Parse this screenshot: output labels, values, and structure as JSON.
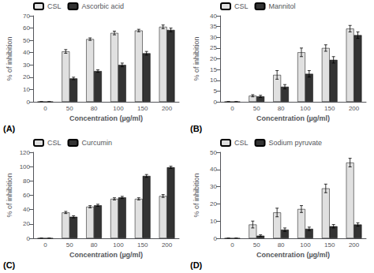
{
  "chart_data": [
    {
      "type": "bar",
      "annotations": [
        "(A)"
      ],
      "categories": [
        "0",
        "50",
        "80",
        "100",
        "150",
        "200"
      ],
      "xlabel": "Concentration (µg/ml)",
      "ylabel": "% of inhibition",
      "series": [
        {
          "name": "CSL",
          "color": "#e0e0e0",
          "values": [
            0,
            41,
            51,
            56,
            58,
            61
          ],
          "errors": [
            0,
            1.5,
            1.0,
            1.5,
            1.0,
            1.5
          ]
        },
        {
          "name": "Ascorbic acid",
          "color": "#333333",
          "values": [
            0,
            19,
            25,
            30,
            39.5,
            58.5
          ],
          "errors": [
            0,
            1.0,
            1.0,
            1.5,
            1.5,
            1.5
          ]
        }
      ],
      "ylim": [
        0,
        70
      ],
      "yticks": [
        0,
        10,
        20,
        30,
        40,
        50,
        60,
        70
      ],
      "grid": false,
      "legend": "upper left"
    },
    {
      "type": "bar",
      "annotations": [
        "(B)"
      ],
      "categories": [
        "0",
        "50",
        "80",
        "100",
        "150",
        "200"
      ],
      "xlabel": "Concentration (µg/ml)",
      "ylabel": "% of inhibition",
      "series": [
        {
          "name": "CSL",
          "color": "#e0e0e0",
          "values": [
            0,
            2.8,
            12.5,
            23,
            25,
            34
          ],
          "errors": [
            0,
            0.5,
            2.0,
            2.0,
            1.5,
            1.5
          ]
        },
        {
          "name": "Mannitol",
          "color": "#333333",
          "values": [
            0,
            2.5,
            7.0,
            13,
            19.5,
            31
          ],
          "errors": [
            0,
            0.5,
            1.0,
            1.5,
            1.5,
            1.5
          ]
        }
      ],
      "ylim": [
        0,
        40
      ],
      "yticks": [
        0,
        5,
        10,
        15,
        20,
        25,
        30,
        35,
        40
      ],
      "grid": false,
      "legend": "upper left"
    },
    {
      "type": "bar",
      "annotations": [
        "(C)"
      ],
      "categories": [
        "0",
        "50",
        "80",
        "100",
        "150",
        "200"
      ],
      "xlabel": "Concentration (µg/ml)",
      "ylabel": "% of inhibition",
      "series": [
        {
          "name": "CSL",
          "color": "#e0e0e0",
          "values": [
            0,
            36,
            44,
            55,
            55,
            59
          ],
          "errors": [
            0,
            1.5,
            1.5,
            1.5,
            1.5,
            2.0
          ]
        },
        {
          "name": "Curcumin",
          "color": "#333333",
          "values": [
            0,
            30,
            46,
            57,
            87,
            99
          ],
          "errors": [
            0,
            1.5,
            1.5,
            1.5,
            2.0,
            1.5
          ]
        }
      ],
      "ylim": [
        0,
        120
      ],
      "yticks": [
        0,
        20,
        40,
        60,
        80,
        100,
        120
      ],
      "grid": false,
      "legend": "upper left"
    },
    {
      "type": "bar",
      "annotations": [
        "(D)"
      ],
      "categories": [
        "0",
        "50",
        "80",
        "100",
        "150",
        "200"
      ],
      "xlabel": "Concentration (µg/ml)",
      "ylabel": "% of inhibition",
      "series": [
        {
          "name": "CSL",
          "color": "#e0e0e0",
          "values": [
            0,
            8,
            15,
            17,
            29,
            44
          ],
          "errors": [
            0,
            2.0,
            2.5,
            2.0,
            2.5,
            2.5
          ]
        },
        {
          "name": "Sodium pyruvate",
          "color": "#333333",
          "values": [
            0,
            1.5,
            5,
            5.5,
            7,
            8
          ],
          "errors": [
            0,
            0.5,
            1.0,
            1.0,
            1.0,
            1.0
          ]
        }
      ],
      "ylim": [
        0,
        50
      ],
      "yticks": [
        0,
        10,
        20,
        30,
        40,
        50
      ],
      "grid": false,
      "legend": "upper left"
    }
  ]
}
